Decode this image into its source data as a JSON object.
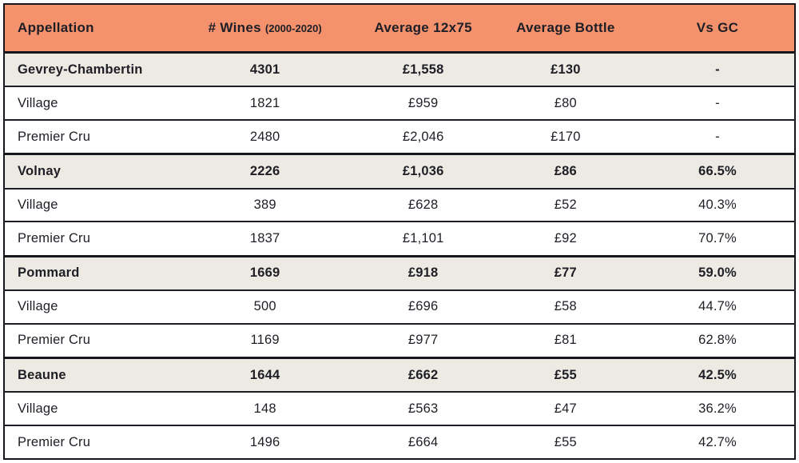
{
  "chart_data": {
    "type": "table",
    "columns": [
      {
        "label": "Appellation",
        "suffix": ""
      },
      {
        "label": "# Wines",
        "suffix": "(2000-2020)"
      },
      {
        "label": "Average 12x75",
        "suffix": ""
      },
      {
        "label": "Average Bottle",
        "suffix": ""
      },
      {
        "label": "Vs GC",
        "suffix": ""
      }
    ],
    "rows": [
      {
        "row_type": "group",
        "appellation": "Gevrey-Chambertin",
        "wines": "4301",
        "avg_12x75": "£1,558",
        "avg_bottle": "£130",
        "vs_gc": "-"
      },
      {
        "row_type": "sub",
        "appellation": "Village",
        "wines": "1821",
        "avg_12x75": "£959",
        "avg_bottle": "£80",
        "vs_gc": "-"
      },
      {
        "row_type": "sub",
        "appellation": "Premier Cru",
        "wines": "2480",
        "avg_12x75": "£2,046",
        "avg_bottle": "£170",
        "vs_gc": "-"
      },
      {
        "row_type": "group",
        "appellation": "Volnay",
        "wines": "2226",
        "avg_12x75": "£1,036",
        "avg_bottle": "£86",
        "vs_gc": "66.5%"
      },
      {
        "row_type": "sub",
        "appellation": "Village",
        "wines": "389",
        "avg_12x75": "£628",
        "avg_bottle": "£52",
        "vs_gc": "40.3%"
      },
      {
        "row_type": "sub",
        "appellation": "Premier Cru",
        "wines": "1837",
        "avg_12x75": "£1,101",
        "avg_bottle": "£92",
        "vs_gc": "70.7%"
      },
      {
        "row_type": "group",
        "appellation": "Pommard",
        "wines": "1669",
        "avg_12x75": "£918",
        "avg_bottle": "£77",
        "vs_gc": "59.0%"
      },
      {
        "row_type": "sub",
        "appellation": "Village",
        "wines": "500",
        "avg_12x75": "£696",
        "avg_bottle": "£58",
        "vs_gc": "44.7%"
      },
      {
        "row_type": "sub",
        "appellation": "Premier Cru",
        "wines": "1169",
        "avg_12x75": "£977",
        "avg_bottle": "£81",
        "vs_gc": "62.8%"
      },
      {
        "row_type": "group",
        "appellation": "Beaune",
        "wines": "1644",
        "avg_12x75": "£662",
        "avg_bottle": "£55",
        "vs_gc": "42.5%"
      },
      {
        "row_type": "sub",
        "appellation": "Village",
        "wines": "148",
        "avg_12x75": "£563",
        "avg_bottle": "£47",
        "vs_gc": "36.2%"
      },
      {
        "row_type": "sub",
        "appellation": "Premier Cru",
        "wines": "1496",
        "avg_12x75": "£664",
        "avg_bottle": "£55",
        "vs_gc": "42.7%"
      }
    ]
  },
  "colors": {
    "header_bg": "#F3926C",
    "group_row_bg": "#ECEAE2",
    "row_bg": "#FFFFFF",
    "text": "#1E1E26",
    "border": "#16161E"
  }
}
